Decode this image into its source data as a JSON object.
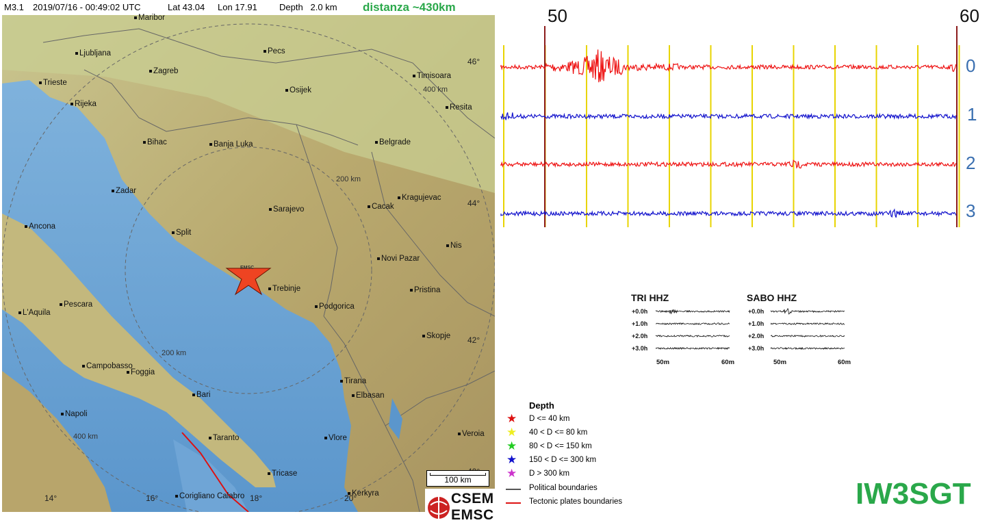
{
  "header": {
    "magnitude": "M3.1",
    "datetime": "2019/07/16 - 00:49:02 UTC",
    "lat": "Lat 43.04",
    "lon": "Lon 17.91",
    "depth": "Depth   2.0 km",
    "distance": "distanza ~430km"
  },
  "map": {
    "epicenter_label": "EMSC",
    "cities": [
      {
        "name": "Maribor",
        "key": "maribor"
      },
      {
        "name": "Ljubljana",
        "key": "ljubljana"
      },
      {
        "name": "Pecs",
        "key": "pecs"
      },
      {
        "name": "Zagreb",
        "key": "zagreb"
      },
      {
        "name": "Timisoara",
        "key": "timisoara"
      },
      {
        "name": "Trieste",
        "key": "trieste"
      },
      {
        "name": "Osijek",
        "key": "osijek"
      },
      {
        "name": "Rijeka",
        "key": "rijeka"
      },
      {
        "name": "Resita",
        "key": "resita"
      },
      {
        "name": "Bihac",
        "key": "bihac"
      },
      {
        "name": "Banja Luka",
        "key": "banja-luka"
      },
      {
        "name": "Belgrade",
        "key": "belgrade"
      },
      {
        "name": "Zadar",
        "key": "zadar"
      },
      {
        "name": "Kragujevac",
        "key": "kragujevac"
      },
      {
        "name": "Cacak",
        "key": "cacak"
      },
      {
        "name": "Sarajevo",
        "key": "sarajevo"
      },
      {
        "name": "Ancona",
        "key": "ancona"
      },
      {
        "name": "Split",
        "key": "split"
      },
      {
        "name": "Nis",
        "key": "nis"
      },
      {
        "name": "Novi Pazar",
        "key": "novi-pazar"
      },
      {
        "name": "Trebinje",
        "key": "trebinje"
      },
      {
        "name": "Pristina",
        "key": "pristina"
      },
      {
        "name": "Pescara",
        "key": "pescara"
      },
      {
        "name": "Podgorica",
        "key": "podgorica"
      },
      {
        "name": "L'Aquila",
        "key": "laquila"
      },
      {
        "name": "Skopje",
        "key": "skopje"
      },
      {
        "name": "Campobasso",
        "key": "campobasso"
      },
      {
        "name": "Foggia",
        "key": "foggia"
      },
      {
        "name": "Tirana",
        "key": "tirana"
      },
      {
        "name": "Elbasan",
        "key": "elbasan"
      },
      {
        "name": "Bari",
        "key": "bari"
      },
      {
        "name": "Napoli",
        "key": "napoli"
      },
      {
        "name": "Taranto",
        "key": "taranto"
      },
      {
        "name": "Vlore",
        "key": "vlore"
      },
      {
        "name": "Veroia",
        "key": "veroia"
      },
      {
        "name": "Tricase",
        "key": "tricase"
      },
      {
        "name": "Corigliano Calabro",
        "key": "corigliano"
      },
      {
        "name": "Kerkyra",
        "key": "kerkyra"
      }
    ],
    "ring_labels": [
      "400 km",
      "200 km",
      "200 km",
      "400 km"
    ],
    "lat_ticks": [
      "46°",
      "44°",
      "42°",
      "40°"
    ],
    "lon_ticks": [
      "14°",
      "16°",
      "18°",
      "20°"
    ],
    "scale_label": "100 km",
    "logo_line1": "CSEM",
    "logo_line2": "EMSC"
  },
  "seismogram": {
    "time_marks": [
      "50",
      "60"
    ],
    "channels": [
      "0",
      "1",
      "2",
      "3"
    ],
    "colors": {
      "red": "#ee1111",
      "blue": "#1111cc",
      "grid": "#e8d400",
      "marker": "#8b1a1a"
    }
  },
  "mini_plots": [
    {
      "title": "TRI HHZ",
      "rows": [
        "+0.0h",
        "+1.0h",
        "+2.0h",
        "+3.0h"
      ],
      "x_labels": [
        "50m",
        "60m"
      ]
    },
    {
      "title": "SABO HHZ",
      "rows": [
        "+0.0h",
        "+1.0h",
        "+2.0h",
        "+3.0h"
      ],
      "x_labels": [
        "50m",
        "60m"
      ]
    }
  ],
  "legend": {
    "title": "Depth",
    "items": [
      {
        "label": "D <= 40 km",
        "color": "#dd1111",
        "icon": "star-icon"
      },
      {
        "label": "40 < D <= 80 km",
        "color": "#eeee22",
        "icon": "star-icon"
      },
      {
        "label": "80 < D <= 150 km",
        "color": "#22cc22",
        "icon": "star-icon"
      },
      {
        "label": "150 < D <= 300 km",
        "color": "#1111cc",
        "icon": "star-icon"
      },
      {
        "label": "D > 300 km",
        "color": "#cc33cc",
        "icon": "star-icon"
      },
      {
        "label": "Political boundaries",
        "color": "#555555",
        "icon": "line-icon"
      },
      {
        "label": "Tectonic plates boundaries",
        "color": "#dd1111",
        "icon": "line-icon"
      }
    ]
  },
  "callsign": "IW3SGT"
}
